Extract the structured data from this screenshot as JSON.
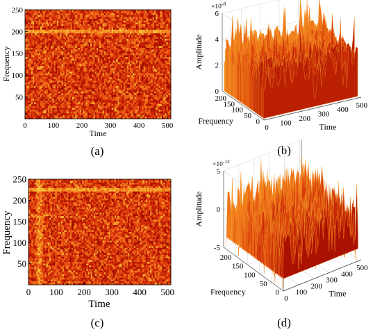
{
  "chart_data": [
    {
      "type": "heatmap",
      "panel_label": "(a)",
      "xlabel": "Time",
      "ylabel": "Frequency",
      "xlim": [
        0,
        512
      ],
      "ylim": [
        0,
        250
      ],
      "xticks": [
        "0",
        "100",
        "200",
        "300",
        "400",
        "500"
      ],
      "yticks": [
        "50",
        "100",
        "150",
        "200",
        "250"
      ],
      "colormap": [
        "#6e0000",
        "#b81400",
        "#e4420e",
        "#f58a20",
        "#f8c33a"
      ],
      "features": [
        {
          "type": "horizontal_line",
          "frequency": 200
        }
      ]
    },
    {
      "type": "surface3d",
      "panel_label": "(b)",
      "xlabel": "Time",
      "ylabel": "Frequency",
      "zlabel": "Amplitude",
      "exponent": "×10^-8",
      "exponent_base": "×10",
      "exponent_power": "-8",
      "xlim": [
        0,
        512
      ],
      "ylim": [
        0,
        250
      ],
      "zlim": [
        0,
        6
      ],
      "xticks": [
        "0",
        "100",
        "200",
        "300",
        "400",
        "500"
      ],
      "yticks": [
        "0",
        "50",
        "100",
        "150",
        "200"
      ],
      "zticks": [
        "0",
        "2",
        "4",
        "6"
      ]
    },
    {
      "type": "heatmap",
      "panel_label": "(c)",
      "xlabel": "Time",
      "ylabel": "Frequency",
      "xlim": [
        0,
        512
      ],
      "ylim": [
        0,
        250
      ],
      "xticks": [
        "0",
        "100",
        "200",
        "300",
        "400",
        "500"
      ],
      "yticks": [
        "50",
        "100",
        "150",
        "200",
        "250"
      ],
      "colormap": [
        "#6e0000",
        "#b81400",
        "#e4420e",
        "#f58a20",
        "#f8c33a"
      ],
      "features": [
        {
          "type": "horizontal_line",
          "frequency": 225
        },
        {
          "type": "vertical_band",
          "time": 40
        }
      ]
    },
    {
      "type": "surface3d",
      "panel_label": "(d)",
      "xlabel": "Time",
      "ylabel": "Frequency",
      "zlabel": "Amplitude",
      "exponent": "×10^-12",
      "exponent_base": "×10",
      "exponent_power": "-12",
      "xlim": [
        0,
        512
      ],
      "ylim": [
        0,
        250
      ],
      "zlim": [
        -5,
        5
      ],
      "xticks": [
        "0",
        "100",
        "200",
        "300",
        "400",
        "500"
      ],
      "yticks": [
        "0",
        "50",
        "100",
        "150",
        "200"
      ],
      "zticks": [
        "-5",
        "0",
        "5"
      ]
    }
  ]
}
